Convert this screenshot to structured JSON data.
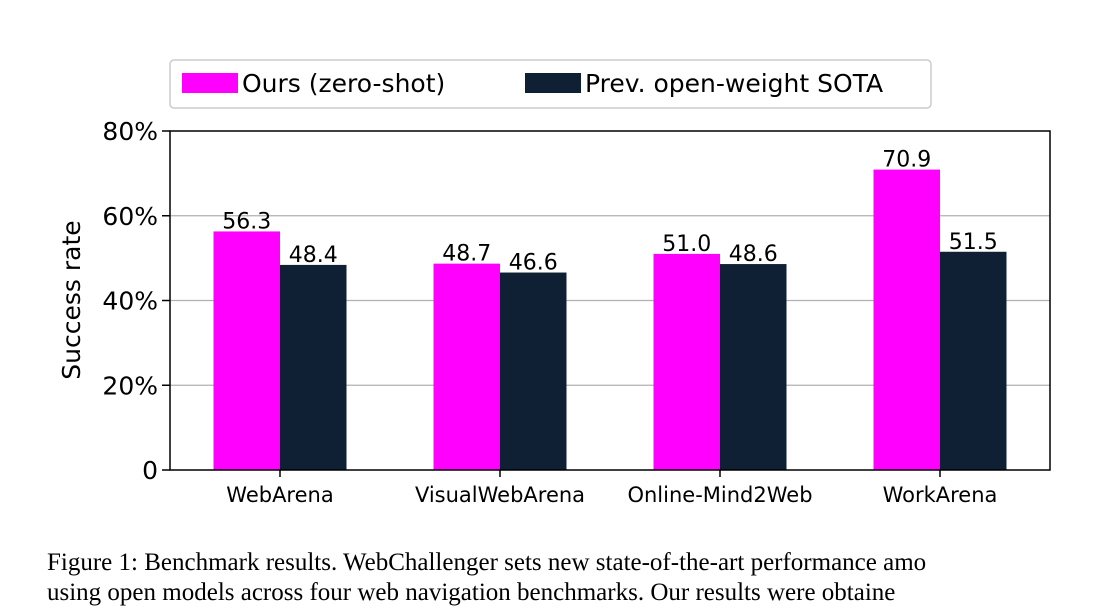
{
  "chart_data": {
    "type": "bar",
    "categories": [
      "WebArena",
      "VisualWebArena",
      "Online-Mind2Web",
      "WorkArena"
    ],
    "series": [
      {
        "name": "Ours (zero-shot)",
        "color": "#ff00ff",
        "values": [
          56.3,
          48.7,
          51.0,
          70.9
        ],
        "value_labels": [
          "56.3",
          "48.7",
          "51.0",
          "70.9"
        ]
      },
      {
        "name": "Prev. open-weight SOTA",
        "color": "#0f2035",
        "values": [
          48.4,
          46.6,
          48.6,
          51.5
        ],
        "value_labels": [
          "48.4",
          "46.6",
          "48.6",
          "51.5"
        ]
      }
    ],
    "title": "",
    "xlabel": "",
    "ylabel": "Success rate",
    "ylim": [
      0,
      80
    ],
    "yticks": [
      0,
      20,
      40,
      60,
      80
    ],
    "ytick_labels": [
      "0",
      "20%",
      "40%",
      "60%",
      "80%"
    ],
    "grid": "horizontal",
    "legend_position": "top"
  },
  "caption": {
    "line1": "Figure 1: Benchmark results. WebChallenger sets new state-of-the-art performance amo",
    "line2": "using open models across four web navigation benchmarks. Our results were obtaine"
  }
}
